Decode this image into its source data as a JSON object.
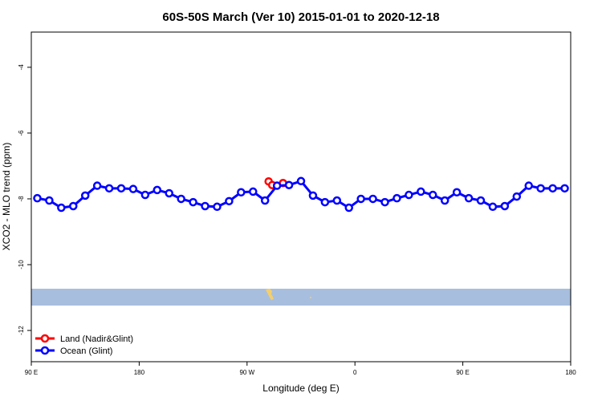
{
  "chart_data": {
    "type": "line",
    "title": "60S-50S March (Ver 10)   2015-01-01 to 2020-12-18",
    "x_label": "Longitude (deg E)",
    "y_label": "XCO2 - MLO trend (ppm)",
    "xlim": [
      90,
      540
    ],
    "ylim": [
      -12.95,
      -2.93
    ],
    "xticks": [
      {
        "value": 90,
        "label": "90 E"
      },
      {
        "value": 180,
        "label": "180"
      },
      {
        "value": 270,
        "label": "90 W"
      },
      {
        "value": 360,
        "label": "0"
      },
      {
        "value": 450,
        "label": "90 E"
      },
      {
        "value": 540,
        "label": "180"
      }
    ],
    "yticks": [
      -4,
      -6,
      -8,
      -10,
      -12
    ],
    "legend": "bottom-left",
    "series": [
      {
        "name": "Land (Nadir&Glint)",
        "color": "#ff0000",
        "x": [
          288,
          291,
          300
        ],
        "values": [
          -7.47,
          -7.58,
          -7.52
        ]
      },
      {
        "name": "Ocean (Glint)",
        "color": "#0000ff",
        "x": [
          95,
          105,
          115,
          125,
          135,
          145,
          155,
          165,
          175,
          185,
          195,
          205,
          215,
          225,
          235,
          245,
          255,
          265,
          275,
          285,
          295,
          305,
          315,
          325,
          335,
          345,
          355,
          365,
          375,
          385,
          395,
          405,
          415,
          425,
          435,
          445,
          455,
          465,
          475,
          485,
          495,
          505,
          515,
          525,
          535
        ],
        "values": [
          -7.98,
          -8.05,
          -8.27,
          -8.22,
          -7.9,
          -7.6,
          -7.68,
          -7.68,
          -7.7,
          -7.88,
          -7.73,
          -7.83,
          -8.0,
          -8.1,
          -8.22,
          -8.24,
          -8.07,
          -7.8,
          -7.78,
          -8.05,
          -7.6,
          -7.58,
          -7.46,
          -7.9,
          -8.1,
          -8.05,
          -8.27,
          -8.0,
          -8.0,
          -8.1,
          -7.98,
          -7.88,
          -7.78,
          -7.88,
          -8.05,
          -7.8,
          -7.98,
          -8.05,
          -8.24,
          -8.22,
          -7.93,
          -7.6,
          -7.68,
          -7.68,
          -7.68
        ]
      }
    ]
  }
}
